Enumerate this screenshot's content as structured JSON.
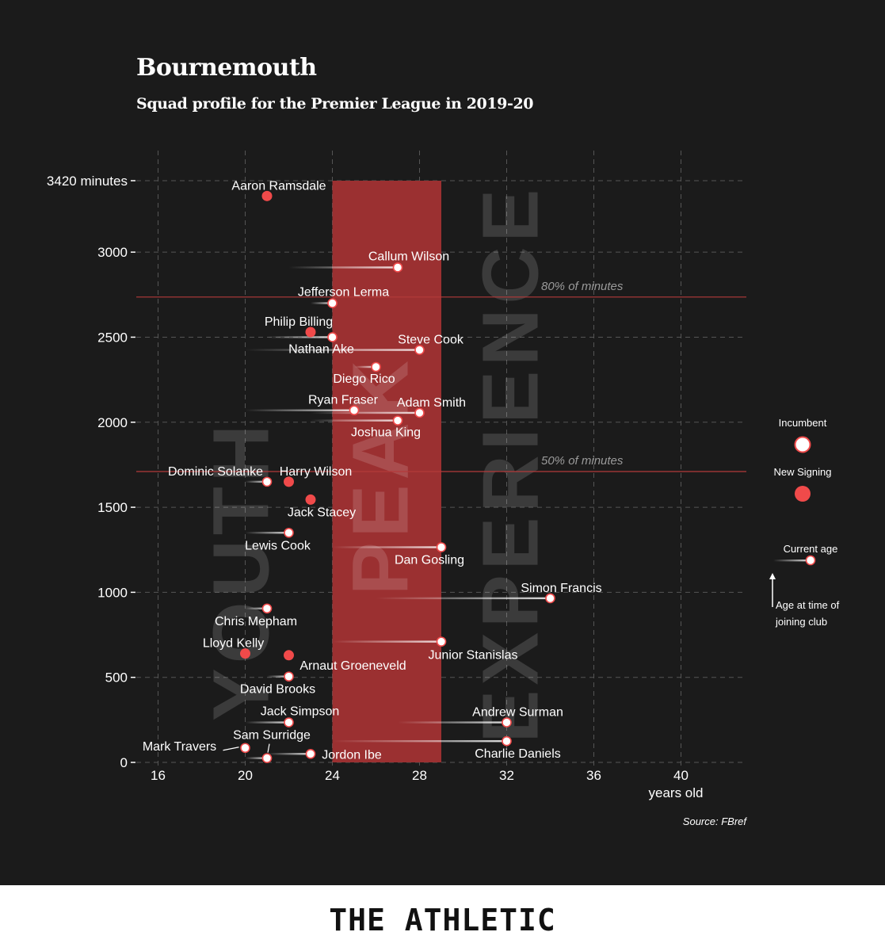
{
  "colors": {
    "background": "#1b1b1b",
    "peak_band": "#9b3031",
    "new_signing": "#f04a4a",
    "incumbent": "#ffffff",
    "reference_line": "#b43a3a",
    "grid": "#555555"
  },
  "footer": {
    "brand": "THE ATHLETIC"
  },
  "chart_data": {
    "type": "scatter",
    "title": "Bournemouth",
    "subtitle": "Squad profile for the Premier League in 2019-20",
    "xlabel": "years old",
    "ylabel": "",
    "xlim": [
      15,
      43
    ],
    "ylim": [
      0,
      3420
    ],
    "x_ticks": [
      16,
      20,
      24,
      28,
      32,
      36,
      40
    ],
    "y_ticks": [
      {
        "value": 0,
        "label": "0"
      },
      {
        "value": 500,
        "label": "500"
      },
      {
        "value": 1000,
        "label": "1000"
      },
      {
        "value": 1500,
        "label": "1500"
      },
      {
        "value": 2000,
        "label": "2000"
      },
      {
        "value": 2500,
        "label": "2500"
      },
      {
        "value": 3000,
        "label": "3000"
      },
      {
        "value": 3420,
        "label": "3420 minutes"
      }
    ],
    "grid": true,
    "zones": [
      {
        "label": "YOUTH",
        "from": 15,
        "to": 24
      },
      {
        "label": "PEAK",
        "from": 24,
        "to": 29,
        "highlighted": true
      },
      {
        "label": "EXPERIENCE",
        "from": 29,
        "to": 43
      }
    ],
    "reference_lines": [
      {
        "value": 2736,
        "label": "80% of minutes"
      },
      {
        "value": 1710,
        "label": "50% of minutes"
      }
    ],
    "legend": {
      "position": "right",
      "incumbent": "Incumbent",
      "new_signing": "New Signing",
      "current_age": "Current age",
      "age_joined": "Age at time of joining club"
    },
    "source": "Source: FBref",
    "players": [
      {
        "name": "Aaron Ramsdale",
        "age": 21,
        "joined_age": 21,
        "minutes": 3330,
        "new_signing": true
      },
      {
        "name": "Callum Wilson",
        "age": 27,
        "joined_age": 22,
        "minutes": 2910,
        "new_signing": false
      },
      {
        "name": "Jefferson Lerma",
        "age": 24,
        "joined_age": 23,
        "minutes": 2700,
        "new_signing": false
      },
      {
        "name": "Philip Billing",
        "age": 23,
        "joined_age": 23,
        "minutes": 2530,
        "new_signing": true
      },
      {
        "name": "Nathan Ake",
        "age": 24,
        "joined_age": 21,
        "minutes": 2500,
        "new_signing": false
      },
      {
        "name": "Steve Cook",
        "age": 28,
        "joined_age": 20,
        "minutes": 2425,
        "new_signing": false
      },
      {
        "name": "Diego Rico",
        "age": 26,
        "joined_age": 25,
        "minutes": 2325,
        "new_signing": false
      },
      {
        "name": "Ryan Fraser",
        "age": 25,
        "joined_age": 20,
        "minutes": 2070,
        "new_signing": false
      },
      {
        "name": "Adam Smith",
        "age": 28,
        "joined_age": 23,
        "minutes": 2055,
        "new_signing": false
      },
      {
        "name": "Joshua King",
        "age": 27,
        "joined_age": 23,
        "minutes": 2010,
        "new_signing": false
      },
      {
        "name": "Dominic Solanke",
        "age": 21,
        "joined_age": 20,
        "minutes": 1650,
        "new_signing": false
      },
      {
        "name": "Harry Wilson",
        "age": 22,
        "joined_age": 22,
        "minutes": 1650,
        "new_signing": true
      },
      {
        "name": "Jack Stacey",
        "age": 23,
        "joined_age": 23,
        "minutes": 1545,
        "new_signing": true
      },
      {
        "name": "Lewis Cook",
        "age": 22,
        "joined_age": 20,
        "minutes": 1350,
        "new_signing": false
      },
      {
        "name": "Dan Gosling",
        "age": 29,
        "joined_age": 24,
        "minutes": 1265,
        "new_signing": false
      },
      {
        "name": "Simon Francis",
        "age": 34,
        "joined_age": 26,
        "minutes": 965,
        "new_signing": false
      },
      {
        "name": "Chris Mepham",
        "age": 21,
        "joined_age": 20,
        "minutes": 905,
        "new_signing": false
      },
      {
        "name": "Junior Stanislas",
        "age": 29,
        "joined_age": 24,
        "minutes": 710,
        "new_signing": false
      },
      {
        "name": "Lloyd Kelly",
        "age": 20,
        "joined_age": 20,
        "minutes": 640,
        "new_signing": true
      },
      {
        "name": "Arnaut Groeneveld",
        "age": 22,
        "joined_age": 22,
        "minutes": 630,
        "new_signing": true
      },
      {
        "name": "David Brooks",
        "age": 22,
        "joined_age": 21,
        "minutes": 505,
        "new_signing": false
      },
      {
        "name": "Jack Simpson",
        "age": 22,
        "joined_age": 20,
        "minutes": 235,
        "new_signing": false
      },
      {
        "name": "Andrew Surman",
        "age": 32,
        "joined_age": 27,
        "minutes": 235,
        "new_signing": false
      },
      {
        "name": "Charlie Daniels",
        "age": 32,
        "joined_age": 24,
        "minutes": 125,
        "new_signing": false
      },
      {
        "name": "Mark Travers",
        "age": 20,
        "joined_age": 20,
        "minutes": 85,
        "new_signing": false
      },
      {
        "name": "Jordon Ibe",
        "age": 23,
        "joined_age": 21,
        "minutes": 50,
        "new_signing": false
      },
      {
        "name": "Sam Surridge",
        "age": 21,
        "joined_age": 20,
        "minutes": 25,
        "new_signing": false
      }
    ]
  }
}
